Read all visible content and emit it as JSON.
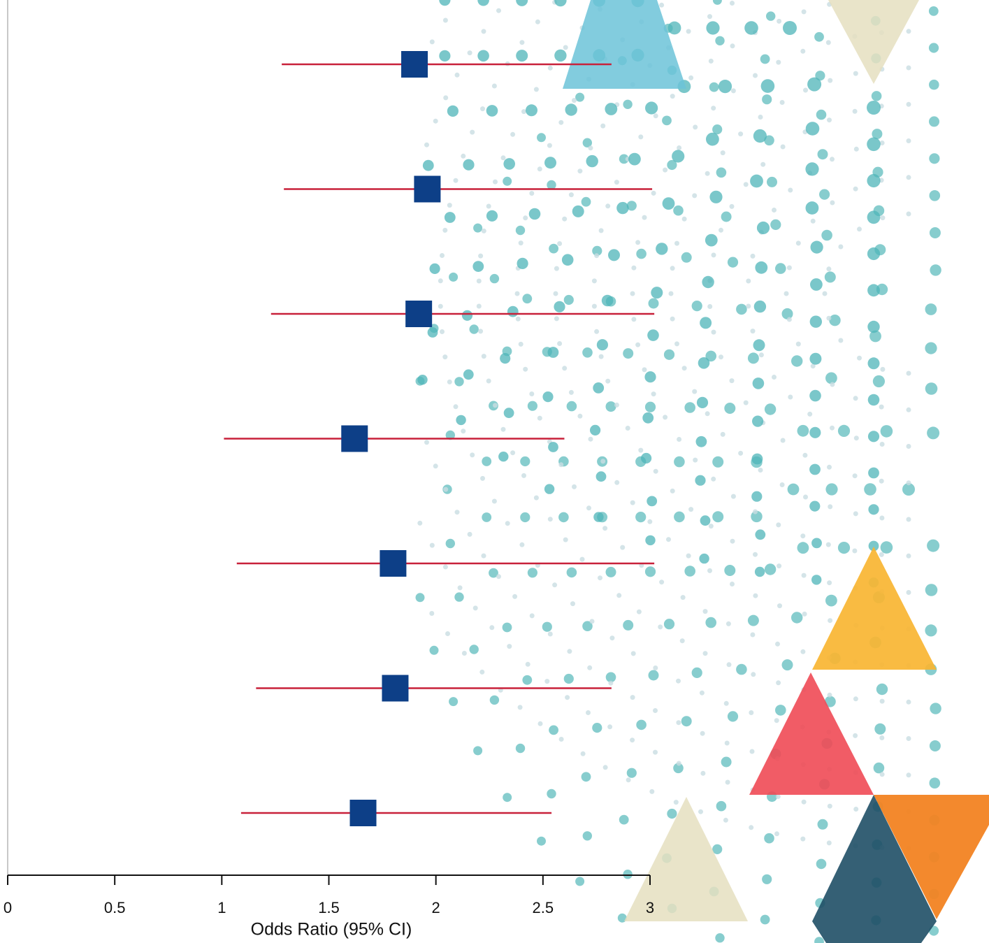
{
  "chart_data": {
    "type": "forest",
    "x_label": "Odds Ratio (95% CI)",
    "xlim": [
      0,
      3
    ],
    "xticks": [
      0,
      0.5,
      1,
      1.5,
      2,
      2.5,
      3
    ],
    "series": [
      {
        "color": "#0d3f87",
        "ci_color": "#c8213a",
        "values": [
          1.9,
          1.96,
          1.92,
          1.62,
          1.8,
          1.81,
          1.66
        ],
        "lower": [
          1.28,
          1.29,
          1.23,
          1.01,
          1.07,
          1.16,
          1.09
        ],
        "upper": [
          2.82,
          3.01,
          3.02,
          2.6,
          3.02,
          2.82,
          2.54
        ]
      }
    ]
  }
}
